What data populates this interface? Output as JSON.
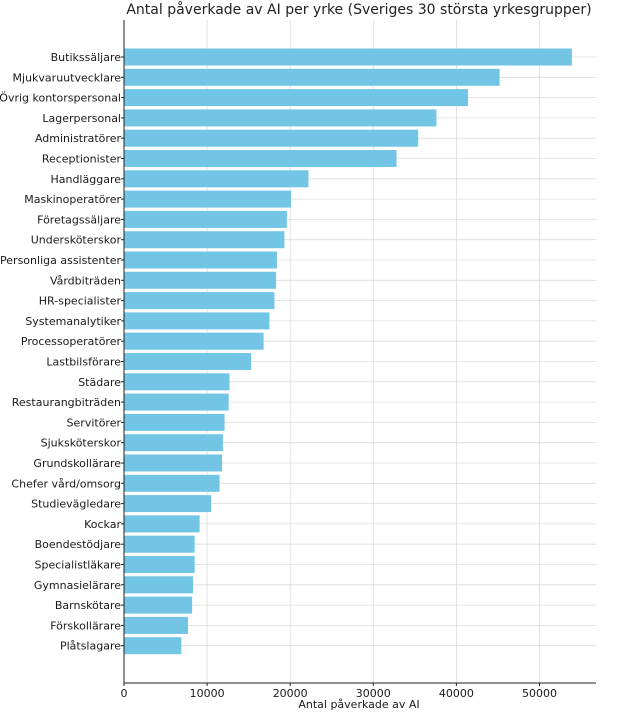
{
  "chart_data": {
    "type": "bar",
    "orientation": "horizontal",
    "title": "Antal påverkade av AI per yrke (Sveriges 30 största yrkesgrupper)",
    "xlabel": "Antal påverkade av AI",
    "ylabel": "",
    "xlim": [
      0,
      56800
    ],
    "xticks": [
      0,
      10000,
      20000,
      30000,
      40000,
      50000
    ],
    "grid": true,
    "bar_color": "#72c5e5",
    "categories": [
      "Butikssäljare",
      "Mjukvaruutvecklare",
      "Övrig kontorspersonal",
      "Lagerpersonal",
      "Administratörer",
      "Receptionister",
      "Handläggare",
      "Maskinoperatörer",
      "Företagssäljare",
      "Undersköterskor",
      "Personliga assistenter",
      "Vårdbiträden",
      "HR-specialister",
      "Systemanalytiker",
      "Processoperatörer",
      "Lastbilsförare",
      "Städare",
      "Restaurangbiträden",
      "Servitörer",
      "Sjuksköterskor",
      "Grundskollärare",
      "Chefer vård/omsorg",
      "Studievägledare",
      "Kockar",
      "Boendestödjare",
      "Specialistläkare",
      "Gymnasielärare",
      "Barnskötare",
      "Förskollärare",
      "Plåtslagare"
    ],
    "values": [
      53900,
      45200,
      41400,
      37600,
      35400,
      32800,
      22200,
      20100,
      19600,
      19300,
      18400,
      18300,
      18100,
      17500,
      16800,
      15300,
      12700,
      12600,
      12100,
      11900,
      11800,
      11500,
      10500,
      9100,
      8500,
      8500,
      8300,
      8200,
      7700,
      6900
    ]
  }
}
